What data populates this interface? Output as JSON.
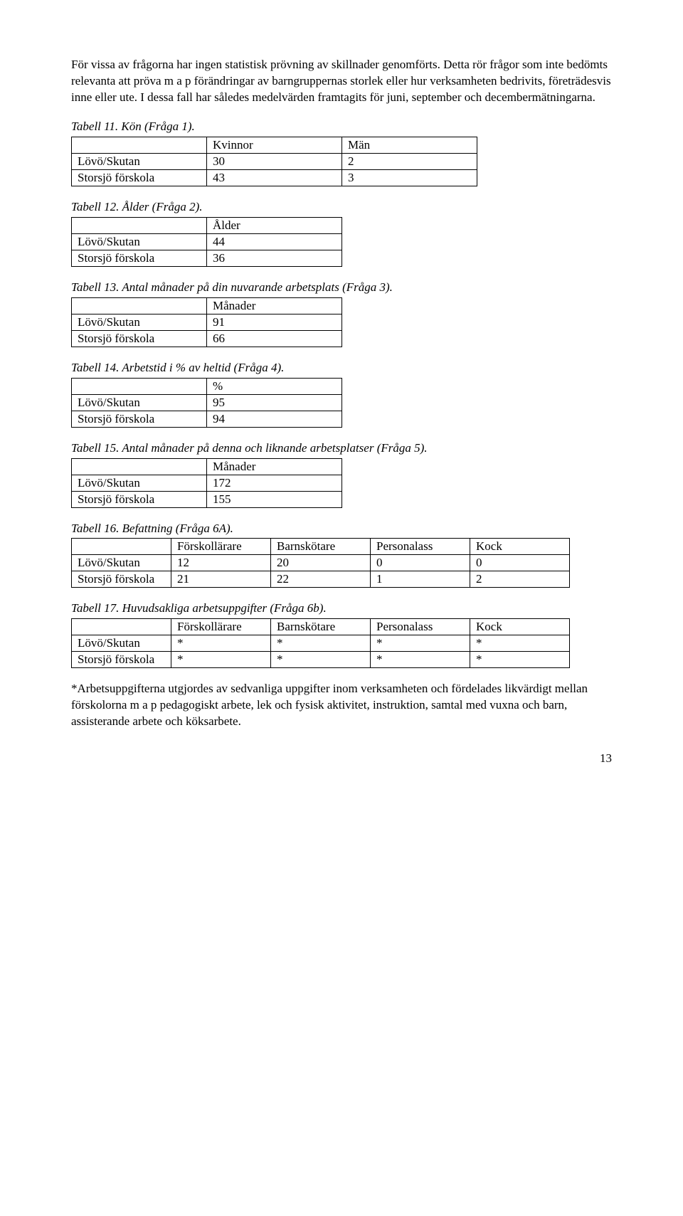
{
  "intro": "För vissa av frågorna har ingen statistisk prövning av skillnader genomförts. Detta rör frågor som inte bedömts relevanta att pröva m a p förändringar av barngruppernas storlek eller hur verksamheten bedrivits, företrädesvis inne eller ute. I dessa fall har således medelvärden framtagits för juni, september och decembermätningarna.",
  "t11": {
    "caption": "Tabell 11. Kön (Fråga 1).",
    "h1": "Kvinnor",
    "h2": "Män",
    "r1": {
      "label": "Lövö/Skutan",
      "c1": "30",
      "c2": "2"
    },
    "r2": {
      "label": "Storsjö förskola",
      "c1": "43",
      "c2": "3"
    }
  },
  "t12": {
    "caption": "Tabell 12. Ålder (Fråga 2).",
    "h1": "Ålder",
    "r1": {
      "label": "Lövö/Skutan",
      "c1": "44"
    },
    "r2": {
      "label": "Storsjö förskola",
      "c1": "36"
    }
  },
  "t13": {
    "caption": "Tabell 13. Antal månader på din nuvarande arbetsplats (Fråga 3).",
    "h1": "Månader",
    "r1": {
      "label": "Lövö/Skutan",
      "c1": "91"
    },
    "r2": {
      "label": "Storsjö förskola",
      "c1": "66"
    }
  },
  "t14": {
    "caption": "Tabell 14. Arbetstid i % av heltid (Fråga 4).",
    "h1": "%",
    "r1": {
      "label": "Lövö/Skutan",
      "c1": "95"
    },
    "r2": {
      "label": "Storsjö förskola",
      "c1": "94"
    }
  },
  "t15": {
    "caption": "Tabell 15. Antal månader på denna och liknande arbetsplatser (Fråga 5).",
    "h1": "Månader",
    "r1": {
      "label": "Lövö/Skutan",
      "c1": "172"
    },
    "r2": {
      "label": "Storsjö förskola",
      "c1": "155"
    }
  },
  "t16": {
    "caption": "Tabell 16. Befattning (Fråga 6A).",
    "h1": "Förskollärare",
    "h2": "Barnskötare",
    "h3": "Personalass",
    "h4": "Kock",
    "r1": {
      "label": "Lövö/Skutan",
      "c1": "12",
      "c2": "20",
      "c3": "0",
      "c4": "0"
    },
    "r2": {
      "label": "Storsjö förskola",
      "c1": "21",
      "c2": "22",
      "c3": "1",
      "c4": "2"
    }
  },
  "t17": {
    "caption": "Tabell 17. Huvudsakliga arbetsuppgifter (Fråga 6b).",
    "h1": "Förskollärare",
    "h2": "Barnskötare",
    "h3": "Personalass",
    "h4": "Kock",
    "r1": {
      "label": "Lövö/Skutan",
      "c1": "*",
      "c2": "*",
      "c3": "*",
      "c4": "*"
    },
    "r2": {
      "label": "Storsjö förskola",
      "c1": "*",
      "c2": "*",
      "c3": "*",
      "c4": "*"
    }
  },
  "footnote": "*Arbetsuppgifterna utgjordes av sedvanliga uppgifter inom verksamheten och fördelades likvärdigt mellan förskolorna m a p pedagogiskt arbete, lek och fysisk aktivitet, instruktion, samtal med vuxna och barn, assisterande arbete och köksarbete.",
  "pagenum": "13"
}
